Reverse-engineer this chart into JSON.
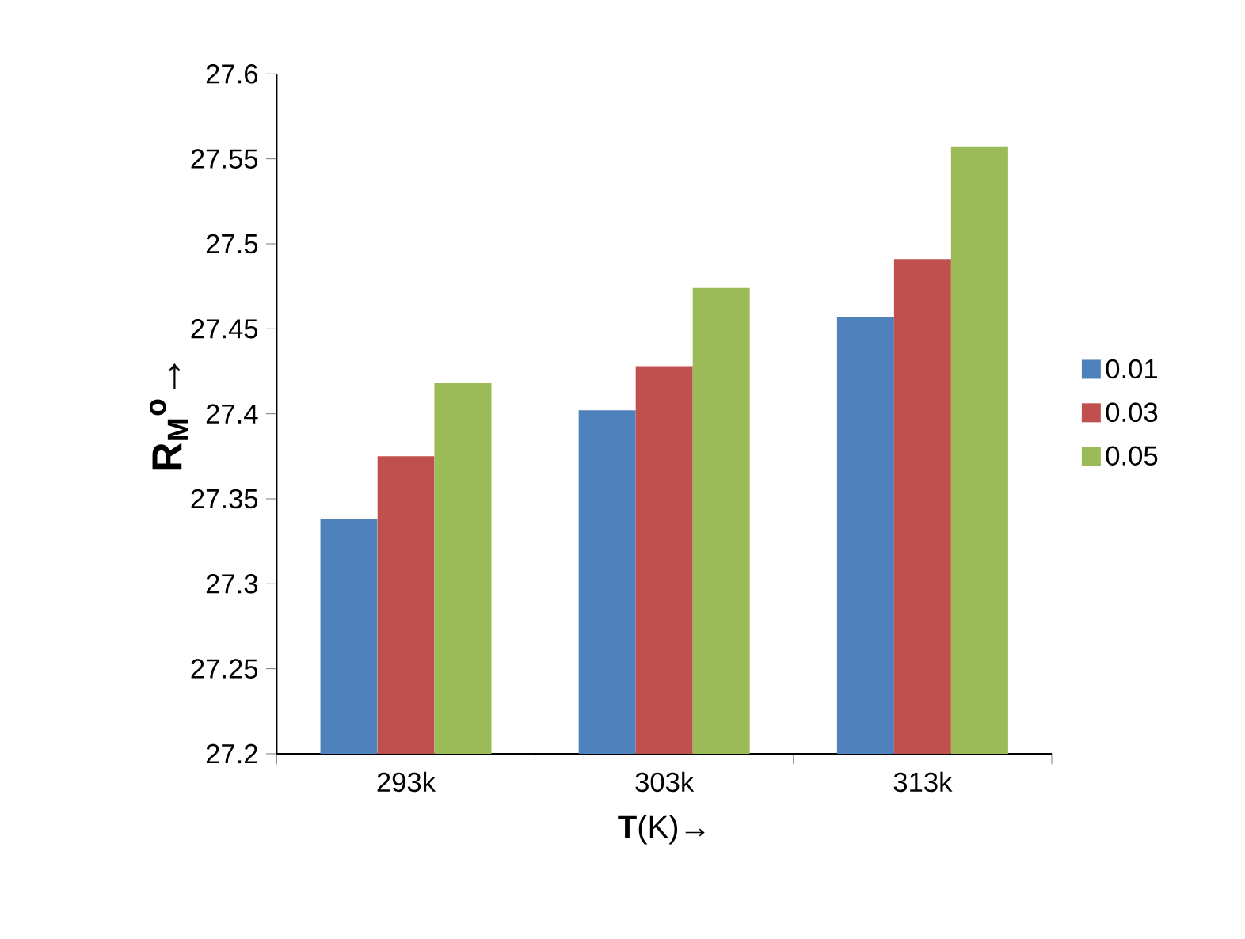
{
  "chart_data": {
    "type": "bar",
    "xlabel": "**T**(K)→",
    "ylabel": "R$_{M}$$^{o}$→",
    "categories": [
      "293k",
      "303k",
      "313k"
    ],
    "series": [
      {
        "name": "0.01",
        "color": "#4f81bd",
        "values": [
          27.338,
          27.402,
          27.457
        ]
      },
      {
        "name": "0.03",
        "color": "#c0504d",
        "values": [
          27.375,
          27.428,
          27.491
        ]
      },
      {
        "name": "0.05",
        "color": "#9bbb59",
        "values": [
          27.418,
          27.474,
          27.557
        ]
      }
    ],
    "ylim": [
      27.2,
      27.6
    ],
    "yticks": [
      27.2,
      27.25,
      27.3,
      27.35,
      27.4,
      27.45,
      27.5,
      27.55,
      27.6
    ],
    "legend": "right"
  }
}
